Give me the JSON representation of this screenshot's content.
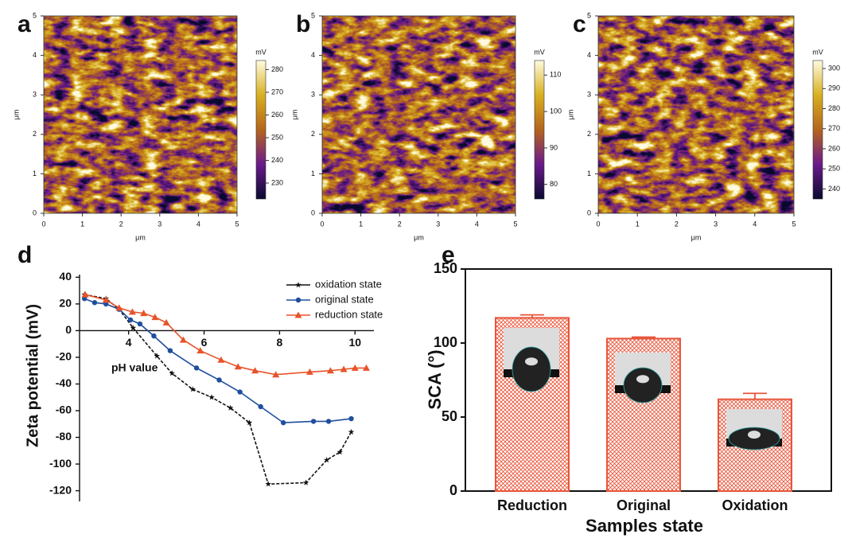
{
  "chart_data": [
    {
      "type": "heatmap",
      "panel": "a",
      "xlabel": "μm",
      "ylabel": "μm",
      "xlim": [
        0,
        5
      ],
      "ylim": [
        0,
        5
      ],
      "xticks": [
        0,
        1,
        2,
        3,
        4,
        5
      ],
      "yticks": [
        0,
        1,
        2,
        3,
        4,
        5
      ],
      "colorbar": {
        "label": "mV",
        "lim": [
          223,
          284
        ],
        "ticks": [
          230,
          240,
          250,
          260,
          270,
          280
        ]
      },
      "colormap": [
        "#0a0a30",
        "#6a1a8a",
        "#b5651d",
        "#d8b020",
        "#fffbe0"
      ]
    },
    {
      "type": "heatmap",
      "panel": "b",
      "xlabel": "μm",
      "ylabel": "μm",
      "xlim": [
        0,
        5
      ],
      "ylim": [
        0,
        5
      ],
      "xticks": [
        0,
        1,
        2,
        3,
        4,
        5
      ],
      "yticks": [
        0,
        1,
        2,
        3,
        4,
        5
      ],
      "colorbar": {
        "label": "mV",
        "lim": [
          76,
          114
        ],
        "ticks": [
          80,
          90,
          100,
          110
        ]
      },
      "colormap": [
        "#0a0a30",
        "#6a1a8a",
        "#b5651d",
        "#d8b020",
        "#fffbe0"
      ]
    },
    {
      "type": "heatmap",
      "panel": "c",
      "xlabel": "μm",
      "ylabel": "μm",
      "xlim": [
        0,
        5
      ],
      "ylim": [
        0,
        5
      ],
      "xticks": [
        0,
        1,
        2,
        3,
        4,
        5
      ],
      "yticks": [
        0,
        1,
        2,
        3,
        4,
        5
      ],
      "colorbar": {
        "label": "mV",
        "lim": [
          235,
          304
        ],
        "ticks": [
          240,
          250,
          260,
          270,
          280,
          290,
          300
        ]
      },
      "colormap": [
        "#0a0a30",
        "#6a1a8a",
        "#b5651d",
        "#d8b020",
        "#fffbe0"
      ]
    },
    {
      "type": "line",
      "panel": "d",
      "ylabel": "Zeta potential (mV)",
      "xlabel": "pH value",
      "legend": "upper right",
      "xlim": [
        2.7,
        10.5
      ],
      "ylim": [
        -128,
        42
      ],
      "xticks": [
        4,
        6,
        8,
        10
      ],
      "yticks": [
        40,
        20,
        0,
        -20,
        -40,
        -60,
        -80,
        -100,
        -120
      ],
      "series": [
        {
          "name": "oxidation state",
          "color": "#111111",
          "marker": "star",
          "x": [
            2.83,
            3.4,
            3.75,
            4.12,
            4.75,
            5.15,
            5.7,
            6.2,
            6.7,
            7.2,
            7.7,
            8.7,
            9.25,
            9.6,
            9.9
          ],
          "values": [
            27,
            24,
            16,
            2,
            -19,
            -32,
            -44,
            -50,
            -58,
            -69,
            -115,
            -114,
            -97,
            -91,
            -76
          ]
        },
        {
          "name": "original state",
          "color": "#1f4e9e",
          "marker": "circle",
          "x": [
            2.83,
            3.1,
            3.4,
            3.75,
            4.05,
            4.3,
            4.67,
            5.1,
            5.8,
            6.4,
            6.95,
            7.5,
            8.1,
            8.9,
            9.3,
            9.9
          ],
          "values": [
            24,
            21,
            20,
            16,
            8,
            5,
            -4,
            -15,
            -28,
            -37,
            -46,
            -57,
            -69,
            -68,
            -68,
            -66
          ]
        },
        {
          "name": "reduction state",
          "color": "#e8532a",
          "marker": "triangle",
          "x": [
            2.85,
            3.4,
            3.75,
            4.1,
            4.4,
            4.7,
            5.0,
            5.45,
            5.9,
            6.45,
            6.9,
            7.35,
            7.9,
            8.8,
            9.35,
            9.7,
            10.0,
            10.3
          ],
          "values": [
            27,
            23,
            17,
            14,
            13,
            10,
            6,
            -7,
            -15,
            -22,
            -27,
            -30,
            -33,
            -31,
            -30,
            -29,
            -28,
            -28
          ]
        }
      ]
    },
    {
      "type": "bar",
      "panel": "e",
      "xlabel": "Samples state",
      "ylabel": "SCA (°)",
      "color": "#e8553a",
      "categories": [
        "Reduction",
        "Original",
        "Oxidation"
      ],
      "values": [
        117,
        103,
        62
      ],
      "errors": [
        2,
        1,
        4
      ],
      "ylim": [
        0,
        150
      ],
      "yticks": [
        0,
        50,
        100,
        150
      ]
    }
  ]
}
